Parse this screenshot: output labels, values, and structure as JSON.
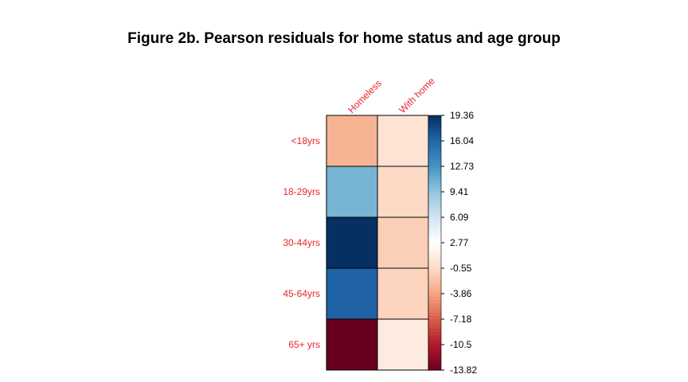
{
  "chart_data": {
    "type": "heatmap",
    "title": "Figure 2b. Pearson residuals for home status and age group",
    "columns": [
      "Homeless",
      "With home"
    ],
    "rows": [
      "<18yrs",
      "18-29yrs",
      "30-44yrs",
      "45-64yrs",
      "65+ yrs"
    ],
    "values": [
      [
        -3.0,
        0.2
      ],
      [
        10.5,
        -0.6
      ],
      [
        19.36,
        -1.3
      ],
      [
        16.3,
        -1.0
      ],
      [
        -13.82,
        0.9
      ]
    ],
    "colorbar": {
      "min": -13.82,
      "max": 19.36,
      "tick_labels": [
        "19.36",
        "16.04",
        "12.73",
        "9.41",
        "6.09",
        "2.77",
        "-0.55",
        "-3.86",
        "-7.18",
        "-10.5",
        "-13.82"
      ]
    },
    "label_color": "#e8262a",
    "palette": [
      "#67001f",
      "#b2182b",
      "#d6604d",
      "#f4a582",
      "#fddbc7",
      "#ffffff",
      "#d1e5f0",
      "#92c5de",
      "#4393c3",
      "#2166ac",
      "#053061"
    ],
    "grid": true,
    "legend_position": "right"
  }
}
